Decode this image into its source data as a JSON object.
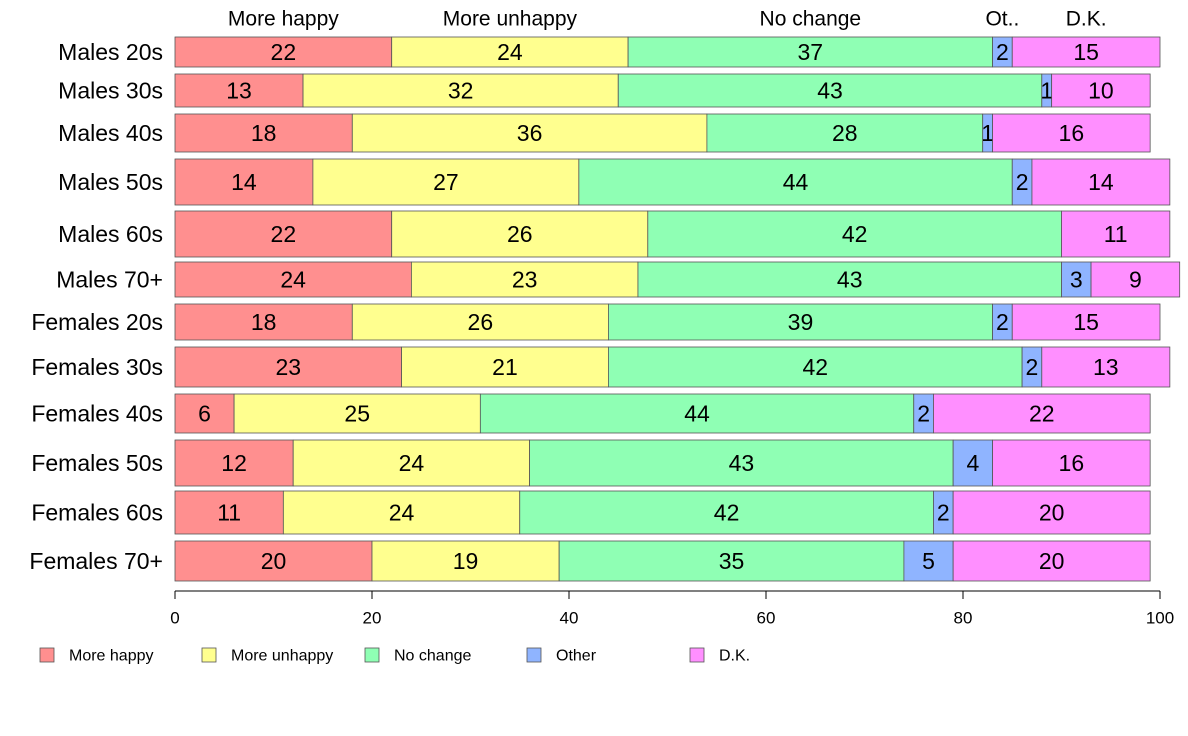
{
  "chart_data": {
    "type": "bar",
    "orientation": "horizontal",
    "stacked": true,
    "categories": [
      "Males 20s",
      "Males 30s",
      "Males 40s",
      "Males 50s",
      "Males 60s",
      "Males 70+",
      "Females 20s",
      "Females 30s",
      "Females 40s",
      "Females 50s",
      "Females 60s",
      "Females 70+"
    ],
    "series": [
      {
        "name": "More happy",
        "color": "#ff8f8f",
        "values": [
          22,
          13,
          18,
          14,
          22,
          24,
          18,
          23,
          6,
          12,
          11,
          20
        ]
      },
      {
        "name": "More unhappy",
        "color": "#ffff8f",
        "values": [
          24,
          32,
          36,
          27,
          26,
          23,
          26,
          21,
          25,
          24,
          24,
          19
        ]
      },
      {
        "name": "No change",
        "color": "#8fffb4",
        "values": [
          37,
          43,
          28,
          44,
          42,
          43,
          39,
          42,
          44,
          43,
          42,
          35
        ]
      },
      {
        "name": "Other",
        "color": "#8fb4ff",
        "values": [
          2,
          1,
          1,
          2,
          0,
          3,
          2,
          2,
          2,
          4,
          2,
          5
        ]
      },
      {
        "name": "D.K.",
        "color": "#ff8fff",
        "values": [
          15,
          10,
          16,
          14,
          11,
          9,
          15,
          13,
          22,
          16,
          20,
          20
        ]
      }
    ],
    "top_labels": [
      "More happy",
      "More unhappy",
      "No change",
      "Ot..",
      "D.K."
    ],
    "x_ticks": [
      0,
      20,
      40,
      60,
      80,
      100
    ],
    "xlim": [
      0,
      100
    ],
    "grid": false,
    "legend_position": "bottom"
  }
}
